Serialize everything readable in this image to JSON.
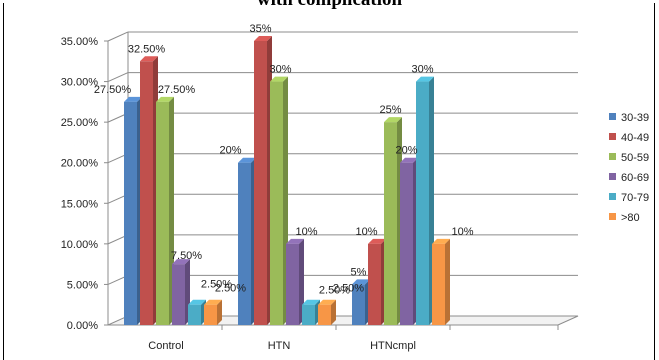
{
  "chart_data": {
    "type": "bar",
    "title": "with complication",
    "categories": [
      "Control",
      "HTN",
      "HTNcmpl"
    ],
    "series": [
      {
        "name": "30-39",
        "color": "#4f81bd",
        "values": [
          27.5,
          20,
          5
        ],
        "labels": [
          "27.50%",
          "20%",
          "5%"
        ]
      },
      {
        "name": "40-49",
        "color": "#c0504d",
        "values": [
          32.5,
          35,
          10
        ],
        "labels": [
          "32.50%",
          "35%",
          "10%"
        ]
      },
      {
        "name": "50-59",
        "color": "#9bbb59",
        "values": [
          27.5,
          30,
          25
        ],
        "labels": [
          "27.50%",
          "30%",
          "25%"
        ]
      },
      {
        "name": "60-69",
        "color": "#8064a2",
        "values": [
          7.5,
          10,
          20
        ],
        "labels": [
          "7.50%",
          "10%",
          "20%"
        ]
      },
      {
        "name": "70-79",
        "color": "#4bacc6",
        "values": [
          2.5,
          2.5,
          30
        ],
        "labels": [
          "2.50%",
          "2.50%",
          "30%"
        ]
      },
      {
        "name": ">80",
        "color": "#f79646",
        "values": [
          2.5,
          2.5,
          10
        ],
        "labels": [
          "2.50%",
          "2.50%",
          "10%"
        ]
      }
    ],
    "y_ticks": [
      "0.00%",
      "5.00%",
      "10.00%",
      "15.00%",
      "20.00%",
      "25.00%",
      "30.00%",
      "35.00%"
    ],
    "ylim": [
      0,
      35
    ],
    "grid": true,
    "legend_position": "right",
    "style": "3d-clustered-column"
  }
}
